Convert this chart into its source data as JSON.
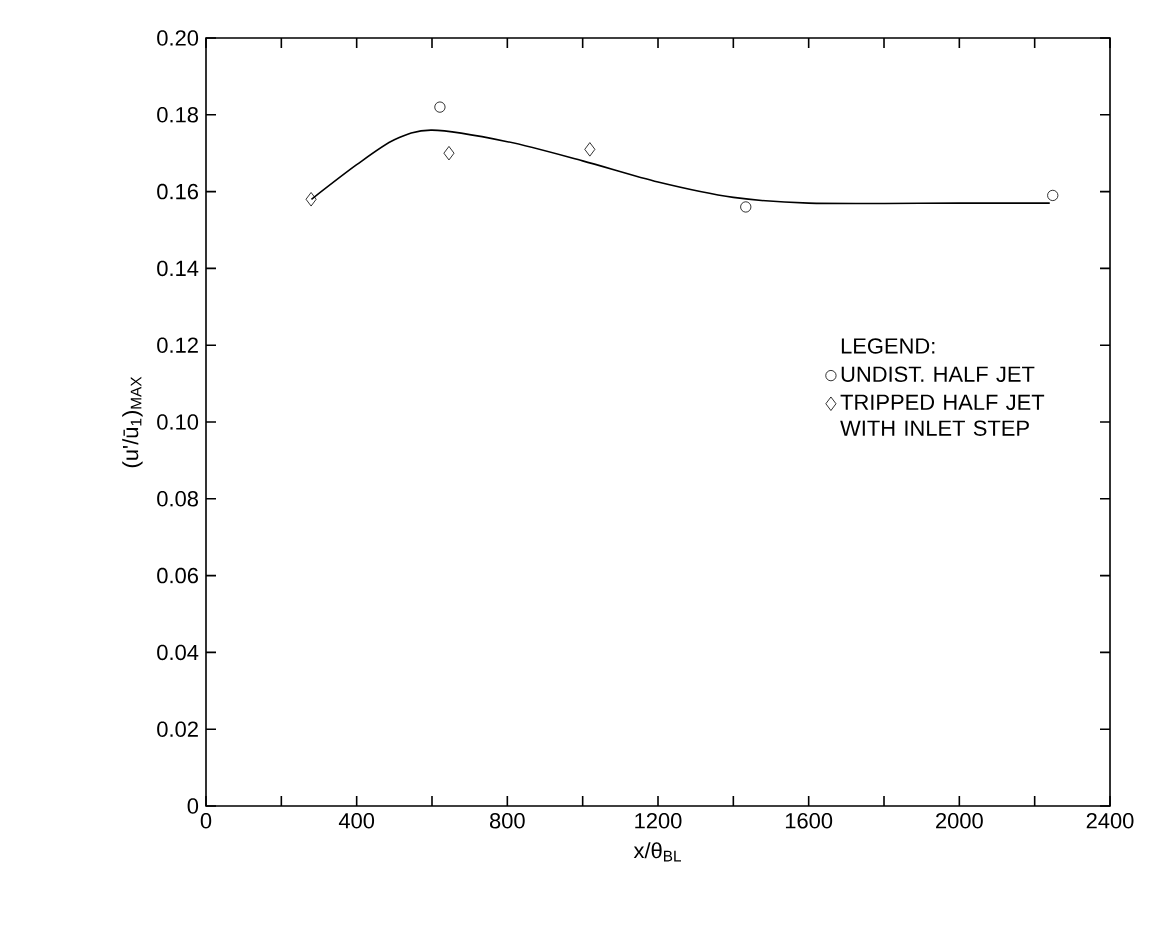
{
  "chart_data": {
    "type": "scatter",
    "xlabel": "x/θ$_{BL}$",
    "ylabel": "(u'/ū$_{1}$)$_{MAX}$",
    "legend_title": "LEGEND:",
    "legend": "right",
    "xlim": [
      0,
      2400
    ],
    "ylim": [
      0,
      0.2
    ],
    "xticks": [
      0,
      {
        "value": 200,
        "label": null
      },
      400,
      {
        "value": 600,
        "label": null
      },
      800,
      {
        "value": 1000,
        "label": null
      },
      1200,
      {
        "value": 1400,
        "label": null
      },
      1600,
      {
        "value": 1800,
        "label": null
      },
      2000,
      {
        "value": 2200,
        "label": null
      },
      2400
    ],
    "yticks": [
      0,
      0.02,
      0.04,
      0.06,
      0.08,
      {
        "value": 0.1,
        "label": "0.10"
      },
      0.12,
      0.14,
      0.16,
      0.18,
      {
        "value": 0.2,
        "label": "0.20"
      }
    ],
    "grid": false,
    "series": [
      {
        "name": "UNDIST. HALF JET",
        "marker": "circle",
        "color": "#000000",
        "x": [
          621,
          1433,
          2248
        ],
        "values": [
          0.182,
          0.156,
          0.159
        ]
      },
      {
        "name": "TRIPPED HALF JET WITH INLET STEP",
        "marker": "diamond",
        "color": "#000000",
        "x": [
          279,
          645,
          1019
        ],
        "values": [
          0.158,
          0.17,
          0.171
        ]
      },
      {
        "type": "line",
        "marker": "none",
        "line_style": "solid",
        "color": "#000000",
        "x": [
          280,
          400,
          500,
          600,
          800,
          1000,
          1200,
          1400,
          1600,
          2000,
          2240
        ],
        "values": [
          0.158,
          0.167,
          0.1735,
          0.176,
          0.173,
          0.168,
          0.1625,
          0.1585,
          0.157,
          0.157,
          0.157
        ]
      }
    ]
  }
}
